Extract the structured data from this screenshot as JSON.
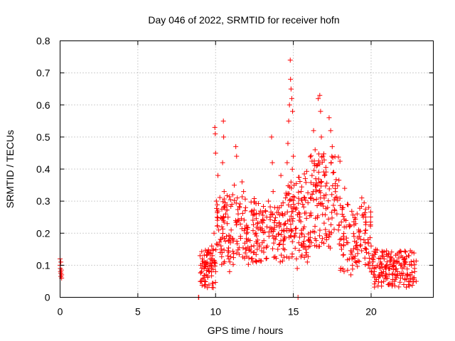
{
  "chart_data": {
    "type": "scatter",
    "title": "Day 046 of 2022, SRMTID for receiver hofn",
    "xlabel": "GPS time / hours",
    "ylabel": "SRMTID / TECUs",
    "xlim": [
      0,
      24
    ],
    "ylim": [
      0,
      0.8
    ],
    "xticks": [
      0,
      5,
      10,
      15,
      20
    ],
    "xtick_labels": [
      "0",
      "5",
      "10",
      "15",
      "20"
    ],
    "yticks": [
      0,
      0.1,
      0.2,
      0.3,
      0.4,
      0.5,
      0.6,
      0.7,
      0.8
    ],
    "ytick_labels": [
      "0",
      "0.1",
      "0.2",
      "0.3",
      "0.4",
      "0.5",
      "0.6",
      "0.7",
      "0.8"
    ],
    "grid": true,
    "marker": "+",
    "color": "#ff0000",
    "series": [
      {
        "name": "SRMTID",
        "points": [
          [
            0.0,
            0.12
          ],
          [
            0.0,
            0.1
          ],
          [
            0.02,
            0.09
          ],
          [
            0.03,
            0.08
          ],
          [
            0.05,
            0.075
          ],
          [
            0.05,
            0.065
          ],
          [
            0.08,
            0.085
          ],
          [
            0.1,
            0.07
          ],
          [
            0.1,
            0.06
          ],
          [
            0.05,
            0.11
          ],
          [
            8.9,
            0.0
          ],
          [
            8.92,
            0.0
          ],
          [
            9.0,
            0.13
          ],
          [
            9.05,
            0.1
          ],
          [
            9.1,
            0.08
          ],
          [
            9.15,
            0.12
          ],
          [
            9.2,
            0.06
          ],
          [
            9.25,
            0.09
          ],
          [
            9.3,
            0.05
          ],
          [
            9.35,
            0.04
          ],
          [
            9.4,
            0.07
          ],
          [
            9.45,
            0.11
          ],
          [
            9.5,
            0.09
          ],
          [
            9.55,
            0.14
          ],
          [
            9.6,
            0.08
          ],
          [
            9.65,
            0.12
          ],
          [
            9.7,
            0.1
          ],
          [
            9.75,
            0.16
          ],
          [
            9.8,
            0.13
          ],
          [
            9.85,
            0.15
          ],
          [
            9.9,
            0.2
          ],
          [
            9.95,
            0.11
          ],
          [
            10.0,
            0.08
          ],
          [
            9.95,
            0.53
          ],
          [
            9.98,
            0.51
          ],
          [
            10.0,
            0.45
          ],
          [
            10.05,
            0.3
          ],
          [
            10.1,
            0.25
          ],
          [
            10.15,
            0.38
          ],
          [
            10.2,
            0.21
          ],
          [
            10.3,
            0.14
          ],
          [
            10.35,
            0.18
          ],
          [
            10.4,
            0.22
          ],
          [
            10.45,
            0.42
          ],
          [
            10.5,
            0.55
          ],
          [
            10.52,
            0.5
          ],
          [
            10.55,
            0.33
          ],
          [
            10.6,
            0.28
          ],
          [
            10.65,
            0.26
          ],
          [
            10.7,
            0.19
          ],
          [
            10.75,
            0.23
          ],
          [
            10.8,
            0.25
          ],
          [
            10.85,
            0.12
          ],
          [
            10.9,
            0.08
          ],
          [
            10.95,
            0.17
          ],
          [
            11.0,
            0.21
          ],
          [
            11.05,
            0.29
          ],
          [
            11.1,
            0.32
          ],
          [
            11.2,
            0.35
          ],
          [
            11.3,
            0.47
          ],
          [
            11.35,
            0.44
          ],
          [
            11.4,
            0.31
          ],
          [
            11.45,
            0.26
          ],
          [
            11.5,
            0.24
          ],
          [
            11.55,
            0.28
          ],
          [
            11.6,
            0.19
          ],
          [
            11.7,
            0.36
          ],
          [
            11.8,
            0.33
          ],
          [
            11.9,
            0.27
          ],
          [
            12.0,
            0.22
          ],
          [
            12.1,
            0.18
          ],
          [
            12.2,
            0.15
          ],
          [
            12.3,
            0.12
          ],
          [
            12.4,
            0.11
          ],
          [
            12.5,
            0.14
          ],
          [
            12.6,
            0.2
          ],
          [
            12.7,
            0.23
          ],
          [
            12.8,
            0.26
          ],
          [
            12.9,
            0.21
          ],
          [
            13.0,
            0.17
          ],
          [
            13.1,
            0.24
          ],
          [
            13.2,
            0.27
          ],
          [
            13.3,
            0.22
          ],
          [
            13.4,
            0.3
          ],
          [
            13.5,
            0.25
          ],
          [
            13.6,
            0.5
          ],
          [
            13.65,
            0.42
          ],
          [
            13.7,
            0.33
          ],
          [
            13.8,
            0.28
          ],
          [
            13.9,
            0.19
          ],
          [
            14.0,
            0.15
          ],
          [
            14.1,
            0.22
          ],
          [
            14.2,
            0.38
          ],
          [
            14.3,
            0.26
          ],
          [
            14.4,
            0.18
          ],
          [
            14.5,
            0.31
          ],
          [
            14.6,
            0.42
          ],
          [
            14.65,
            0.48
          ],
          [
            14.7,
            0.55
          ],
          [
            14.75,
            0.6
          ],
          [
            14.8,
            0.74
          ],
          [
            14.82,
            0.68
          ],
          [
            14.85,
            0.65
          ],
          [
            14.9,
            0.62
          ],
          [
            14.95,
            0.58
          ],
          [
            15.0,
            0.44
          ],
          [
            15.05,
            0.35
          ],
          [
            15.1,
            0.28
          ],
          [
            15.15,
            0.2
          ],
          [
            15.2,
            0.12
          ],
          [
            15.25,
            0.09
          ],
          [
            15.3,
            0.0
          ],
          [
            15.35,
            0.17
          ],
          [
            15.4,
            0.26
          ],
          [
            15.5,
            0.33
          ],
          [
            15.6,
            0.29
          ],
          [
            15.7,
            0.22
          ],
          [
            15.8,
            0.15
          ],
          [
            15.9,
            0.11
          ],
          [
            16.0,
            0.18
          ],
          [
            16.1,
            0.31
          ],
          [
            16.2,
            0.38
          ],
          [
            16.3,
            0.52
          ],
          [
            16.4,
            0.46
          ],
          [
            16.5,
            0.41
          ],
          [
            16.6,
            0.62
          ],
          [
            16.7,
            0.63
          ],
          [
            16.75,
            0.58
          ],
          [
            16.8,
            0.5
          ],
          [
            16.9,
            0.44
          ],
          [
            17.0,
            0.38
          ],
          [
            17.1,
            0.32
          ],
          [
            17.2,
            0.28
          ],
          [
            17.3,
            0.56
          ],
          [
            17.4,
            0.52
          ],
          [
            17.5,
            0.47
          ],
          [
            17.6,
            0.39
          ],
          [
            17.7,
            0.31
          ],
          [
            17.8,
            0.26
          ],
          [
            17.9,
            0.21
          ],
          [
            18.0,
            0.18
          ],
          [
            18.1,
            0.15
          ],
          [
            18.2,
            0.28
          ],
          [
            18.3,
            0.34
          ],
          [
            18.4,
            0.22
          ],
          [
            18.5,
            0.17
          ],
          [
            18.6,
            0.12
          ],
          [
            18.7,
            0.07
          ],
          [
            18.8,
            0.1
          ],
          [
            18.9,
            0.19
          ],
          [
            19.0,
            0.23
          ],
          [
            19.1,
            0.26
          ],
          [
            19.2,
            0.21
          ],
          [
            19.3,
            0.16
          ],
          [
            19.4,
            0.31
          ],
          [
            19.5,
            0.25
          ],
          [
            19.6,
            0.2
          ],
          [
            19.7,
            0.14
          ],
          [
            19.8,
            0.18
          ],
          [
            19.9,
            0.11
          ],
          [
            20.0,
            0.16
          ],
          [
            20.1,
            0.12
          ],
          [
            20.2,
            0.09
          ],
          [
            20.3,
            0.14
          ],
          [
            20.4,
            0.1
          ],
          [
            20.5,
            0.07
          ],
          [
            20.6,
            0.11
          ],
          [
            20.7,
            0.13
          ],
          [
            20.8,
            0.08
          ],
          [
            20.9,
            0.06
          ],
          [
            21.0,
            0.1
          ],
          [
            21.1,
            0.04
          ],
          [
            21.2,
            0.09
          ],
          [
            21.3,
            0.12
          ],
          [
            21.4,
            0.07
          ],
          [
            21.5,
            0.05
          ],
          [
            21.6,
            0.11
          ],
          [
            21.7,
            0.08
          ],
          [
            21.8,
            0.14
          ],
          [
            21.9,
            0.06
          ],
          [
            22.0,
            0.09
          ],
          [
            22.1,
            0.04
          ],
          [
            22.2,
            0.11
          ],
          [
            22.3,
            0.07
          ],
          [
            22.4,
            0.13
          ],
          [
            22.5,
            0.05
          ],
          [
            22.6,
            0.1
          ],
          [
            22.7,
            0.06
          ],
          [
            22.8,
            0.08
          ],
          [
            22.9,
            0.05
          ]
        ],
        "dense_band": [
          {
            "x0": 9.0,
            "x1": 10.0,
            "lo": 0.03,
            "hi": 0.15,
            "n": 60
          },
          {
            "x0": 10.0,
            "x1": 12.5,
            "lo": 0.1,
            "hi": 0.32,
            "n": 130
          },
          {
            "x0": 12.5,
            "x1": 14.5,
            "lo": 0.11,
            "hi": 0.3,
            "n": 110
          },
          {
            "x0": 14.5,
            "x1": 16.0,
            "lo": 0.12,
            "hi": 0.4,
            "n": 100
          },
          {
            "x0": 16.0,
            "x1": 18.0,
            "lo": 0.15,
            "hi": 0.45,
            "n": 130
          },
          {
            "x0": 18.0,
            "x1": 20.0,
            "lo": 0.08,
            "hi": 0.3,
            "n": 100
          },
          {
            "x0": 20.0,
            "x1": 22.9,
            "lo": 0.03,
            "hi": 0.15,
            "n": 150
          }
        ]
      }
    ]
  }
}
